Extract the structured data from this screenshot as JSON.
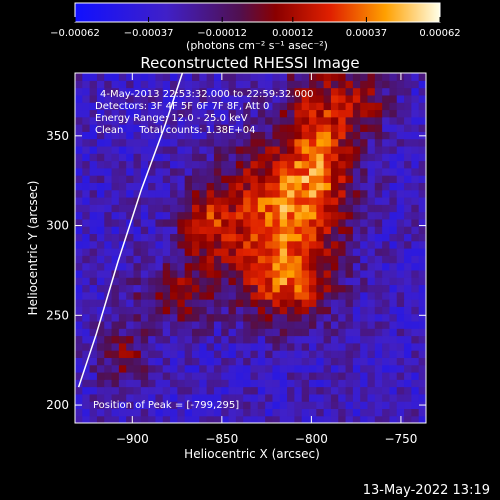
{
  "chart_data": {
    "type": "heatmap",
    "title": "Reconstructed RHESSI Image",
    "xlabel": "Heliocentric X (arcsec)",
    "ylabel": "Heliocentric Y (arcsec)",
    "xlim": [
      -932,
      -736
    ],
    "ylim": [
      190,
      385
    ],
    "xticks": [
      -900,
      -850,
      -800,
      -750
    ],
    "yticks": [
      200,
      250,
      300,
      350
    ],
    "colorbar": {
      "ticks": [
        -0.00062,
        -0.00037,
        -0.00012,
        0.00012,
        0.00037,
        0.00062
      ],
      "tick_labels": [
        "-0.00062",
        "-0.00037",
        "-0.00012",
        "0.00012",
        "0.00037",
        "0.00062"
      ],
      "unit_label": "(photons cm⁻² s⁻¹ asec⁻²)",
      "range": [
        -0.00062,
        0.00062
      ]
    },
    "annotations": [
      "4-May-2013 22:53:32.000 to 22:59:32.000",
      "Detectors: 3F 4F 5F 6F 7F 8F, Att 0",
      "Energy Range: 12.0 - 25.0 keV",
      "Clean     Total counts: 1.38E+04"
    ],
    "peak_label": "Position of Peak = [-799,295]",
    "peak": [
      -799,
      295
    ],
    "limb_curve": [
      [
        -930,
        210
      ],
      [
        -920,
        240
      ],
      [
        -908,
        280
      ],
      [
        -895,
        320
      ],
      [
        -882,
        355
      ],
      [
        -872,
        385
      ]
    ],
    "sources": [
      {
        "x": -822,
        "y": 305,
        "sx": 22,
        "sy": 28,
        "amp": 0.00062
      },
      {
        "x": -795,
        "y": 345,
        "sx": 14,
        "sy": 35,
        "amp": 0.00052
      },
      {
        "x": -860,
        "y": 300,
        "sx": 10,
        "sy": 14,
        "amp": 0.00038
      },
      {
        "x": -875,
        "y": 262,
        "sx": 16,
        "sy": 12,
        "amp": 0.00035
      },
      {
        "x": -812,
        "y": 265,
        "sx": 16,
        "sy": 14,
        "amp": 0.0004
      },
      {
        "x": -905,
        "y": 228,
        "sx": 10,
        "sy": 12,
        "amp": 0.0003
      },
      {
        "x": -770,
        "y": 370,
        "sx": 10,
        "sy": 12,
        "amp": 0.00032
      }
    ],
    "date_stamp": "13-May-2022 13:19"
  }
}
